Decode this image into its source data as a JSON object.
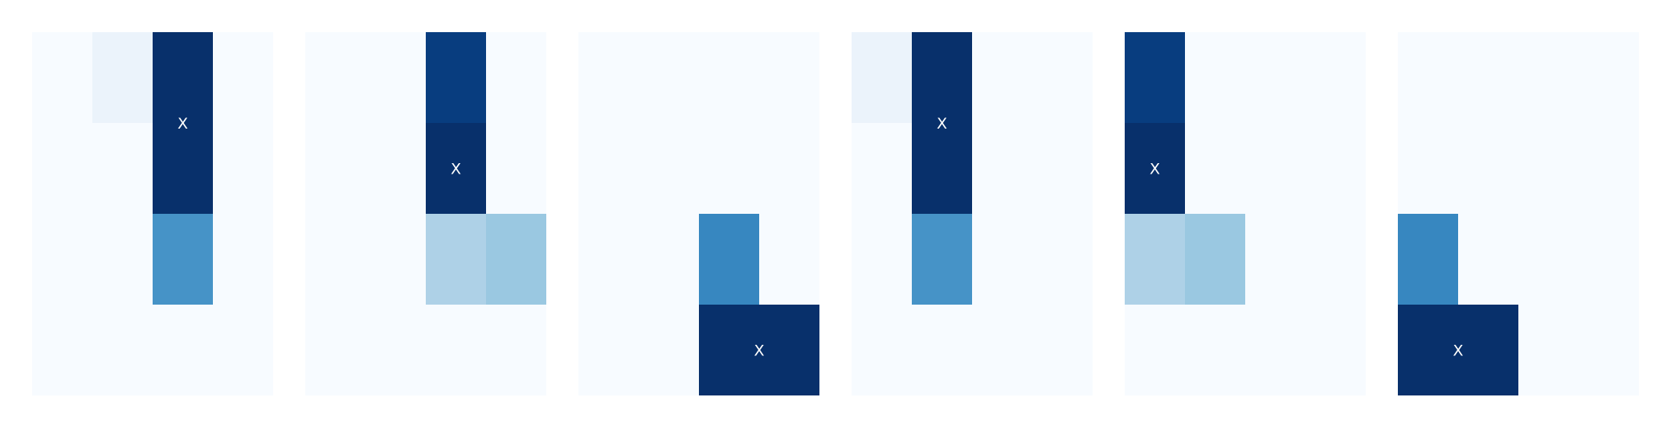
{
  "chart_data": {
    "type": "heatmap",
    "colormap": "Blues",
    "background_color": "#ffffff",
    "panel_colors": {
      "empty": "#f7fbff",
      "faint": "#ebf3fb",
      "light": "#aed1e7",
      "light_mid": "#9ac8e1",
      "mid": "#3787c0",
      "mid_alt": "#4693c7",
      "dark": "#08306b",
      "dark_alt": "#083d7f",
      "marker_text": "#ffffff"
    },
    "panels": [
      {
        "rows": 4,
        "cols": 4,
        "values": [
          [
            0,
            0.04,
            1.0,
            null
          ],
          [
            0,
            0,
            1.0,
            null
          ],
          [
            0,
            0,
            0.62,
            null
          ],
          [
            0,
            0,
            0,
            null
          ]
        ],
        "merged_cells": [
          {
            "row": 0,
            "col": 2,
            "row_span": 2,
            "col_span": 1,
            "value": 1.0,
            "color_key": "dark",
            "label": "X"
          }
        ],
        "cells": [
          {
            "row": 0,
            "col": 1,
            "value": 0.04,
            "color_key": "faint"
          },
          {
            "row": 2,
            "col": 2,
            "value": 0.62,
            "color_key": "mid_alt"
          }
        ]
      },
      {
        "rows": 4,
        "cols": 4,
        "values": [
          [
            0,
            0,
            0.96,
            0
          ],
          [
            0,
            0,
            1.0,
            0
          ],
          [
            0,
            0,
            0.3,
            0.37
          ],
          [
            0,
            0,
            0,
            0
          ]
        ],
        "merged_cells": [],
        "cells": [
          {
            "row": 0,
            "col": 2,
            "value": 0.96,
            "color_key": "dark_alt"
          },
          {
            "row": 1,
            "col": 2,
            "value": 1.0,
            "color_key": "dark",
            "label": "X"
          },
          {
            "row": 2,
            "col": 2,
            "value": 0.3,
            "color_key": "light"
          },
          {
            "row": 2,
            "col": 3,
            "value": 0.37,
            "color_key": "light_mid"
          }
        ]
      },
      {
        "rows": 4,
        "cols": 4,
        "values": [
          [
            0,
            0,
            0,
            0
          ],
          [
            0,
            0,
            0,
            0
          ],
          [
            0,
            0,
            0.69,
            0
          ],
          [
            0,
            0,
            1.0,
            1.0
          ]
        ],
        "merged_cells": [
          {
            "row": 3,
            "col": 2,
            "row_span": 1,
            "col_span": 2,
            "value": 1.0,
            "color_key": "dark",
            "label": "X"
          }
        ],
        "cells": [
          {
            "row": 2,
            "col": 2,
            "value": 0.69,
            "color_key": "mid"
          }
        ]
      },
      {
        "rows": 4,
        "cols": 4,
        "values": [
          [
            0.04,
            1.0,
            0,
            0
          ],
          [
            0,
            1.0,
            0,
            0
          ],
          [
            0,
            0.62,
            0,
            0
          ],
          [
            0,
            0,
            0,
            0
          ]
        ],
        "merged_cells": [
          {
            "row": 0,
            "col": 1,
            "row_span": 2,
            "col_span": 1,
            "value": 1.0,
            "color_key": "dark",
            "label": "X"
          }
        ],
        "cells": [
          {
            "row": 0,
            "col": 0,
            "value": 0.04,
            "color_key": "faint"
          },
          {
            "row": 2,
            "col": 1,
            "value": 0.62,
            "color_key": "mid_alt"
          }
        ]
      },
      {
        "rows": 4,
        "cols": 4,
        "values": [
          [
            0.96,
            0,
            0,
            0
          ],
          [
            1.0,
            0,
            0,
            0
          ],
          [
            0.3,
            0.37,
            0,
            0
          ],
          [
            0,
            0,
            0,
            0
          ]
        ],
        "merged_cells": [],
        "cells": [
          {
            "row": 0,
            "col": 0,
            "value": 0.96,
            "color_key": "dark_alt"
          },
          {
            "row": 1,
            "col": 0,
            "value": 1.0,
            "color_key": "dark",
            "label": "X"
          },
          {
            "row": 2,
            "col": 0,
            "value": 0.3,
            "color_key": "light"
          },
          {
            "row": 2,
            "col": 1,
            "value": 0.37,
            "color_key": "light_mid"
          }
        ]
      },
      {
        "rows": 4,
        "cols": 4,
        "values": [
          [
            0,
            0,
            0,
            0
          ],
          [
            0,
            0,
            0,
            0
          ],
          [
            0.69,
            0,
            0,
            0
          ],
          [
            1.0,
            1.0,
            0,
            0
          ]
        ],
        "merged_cells": [
          {
            "row": 3,
            "col": 0,
            "row_span": 1,
            "col_span": 2,
            "value": 1.0,
            "color_key": "dark",
            "label": "X"
          }
        ],
        "cells": [
          {
            "row": 2,
            "col": 0,
            "value": 0.69,
            "color_key": "mid"
          }
        ]
      }
    ],
    "grid": false,
    "legend": false,
    "title": "",
    "xlabel": "",
    "ylabel": ""
  }
}
